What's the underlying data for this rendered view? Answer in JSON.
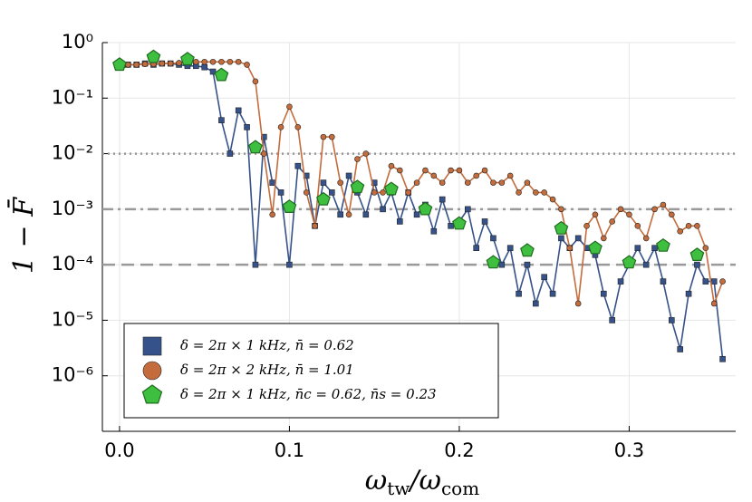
{
  "chart_data": {
    "type": "line",
    "log_y": true,
    "grid": true,
    "legend": "bottom-left",
    "xlabel": [
      "ω",
      "tw",
      "/ω",
      "com"
    ],
    "ylabel": "1 − F̄",
    "xlim": [
      -0.0101,
      0.3627
    ],
    "xticks": [
      {
        "value": 0,
        "label": "0.0"
      },
      0.1,
      0.2,
      0.3
    ],
    "ylim": [
      1e-07,
      1
    ],
    "yticks": [
      {
        "value": 1e-06,
        "label": "10⁻⁶"
      },
      {
        "value": 1e-05,
        "label": "10⁻⁵"
      },
      {
        "value": 0.0001,
        "label": "10⁻⁴"
      },
      {
        "value": 0.001,
        "label": "10⁻³"
      },
      {
        "value": 0.01,
        "label": "10⁻²"
      },
      {
        "value": 0.1,
        "label": "10⁻¹"
      },
      {
        "value": 1,
        "label": "10⁰"
      }
    ],
    "hlines": [
      {
        "value": 0.01,
        "style": "dotted"
      },
      {
        "value": 0.001,
        "style": "dashdot"
      },
      {
        "value": 0.0001,
        "style": "dashed"
      }
    ],
    "series": [
      {
        "name": "δ = 2π × 1 kHz,  n̄ = 0.62",
        "color": "#36528a",
        "marker": "square",
        "x": [
          0,
          0.005,
          0.01,
          0.015,
          0.02,
          0.025,
          0.03,
          0.035,
          0.04,
          0.045,
          0.05,
          0.055,
          0.06,
          0.065,
          0.07,
          0.075,
          0.08,
          0.085,
          0.09,
          0.095,
          0.1,
          0.105,
          0.11,
          0.115,
          0.12,
          0.125,
          0.13,
          0.135,
          0.14,
          0.145,
          0.15,
          0.155,
          0.16,
          0.165,
          0.17,
          0.175,
          0.18,
          0.185,
          0.19,
          0.195,
          0.2,
          0.205,
          0.21,
          0.215,
          0.22,
          0.225,
          0.23,
          0.235,
          0.24,
          0.245,
          0.25,
          0.255,
          0.26,
          0.265,
          0.27,
          0.275,
          0.28,
          0.285,
          0.29,
          0.295,
          0.3,
          0.305,
          0.31,
          0.315,
          0.32,
          0.325,
          0.33,
          0.335,
          0.34,
          0.345,
          0.35,
          0.355
        ],
        "values": [
          0.4,
          0.4,
          0.4,
          0.42,
          0.4,
          0.42,
          0.42,
          0.4,
          0.38,
          0.38,
          0.36,
          0.3,
          0.04,
          0.01,
          0.06,
          0.03,
          0.0001,
          0.02,
          0.003,
          0.002,
          0.0001,
          0.006,
          0.004,
          0.0005,
          0.003,
          0.002,
          0.0008,
          0.004,
          0.002,
          0.0008,
          0.003,
          0.001,
          0.002,
          0.0006,
          0.002,
          0.0008,
          0.0012,
          0.0004,
          0.0015,
          0.0005,
          0.0006,
          0.001,
          0.0002,
          0.0006,
          0.0003,
          0.0001,
          0.0002,
          3e-05,
          0.0001,
          2e-05,
          6e-05,
          3e-05,
          0.0003,
          0.0002,
          0.0003,
          0.0002,
          0.00015,
          3e-05,
          1e-05,
          5e-05,
          0.0001,
          0.0002,
          0.0001,
          0.0002,
          5e-05,
          1e-05,
          3e-06,
          3e-05,
          0.0001,
          5e-05,
          5e-05,
          2e-06
        ]
      },
      {
        "name": "δ = 2π × 2 kHz,  n̄ = 1.01",
        "color": "#c46c3c",
        "marker": "circle",
        "x": [
          0,
          0.005,
          0.01,
          0.015,
          0.02,
          0.025,
          0.03,
          0.035,
          0.04,
          0.045,
          0.05,
          0.055,
          0.06,
          0.065,
          0.07,
          0.075,
          0.08,
          0.085,
          0.09,
          0.095,
          0.1,
          0.105,
          0.11,
          0.115,
          0.12,
          0.125,
          0.13,
          0.135,
          0.14,
          0.145,
          0.15,
          0.155,
          0.16,
          0.165,
          0.17,
          0.175,
          0.18,
          0.185,
          0.19,
          0.195,
          0.2,
          0.205,
          0.21,
          0.215,
          0.22,
          0.225,
          0.23,
          0.235,
          0.24,
          0.245,
          0.25,
          0.255,
          0.26,
          0.265,
          0.27,
          0.275,
          0.28,
          0.285,
          0.29,
          0.295,
          0.3,
          0.305,
          0.31,
          0.315,
          0.32,
          0.325,
          0.33,
          0.335,
          0.34,
          0.345,
          0.35,
          0.355
        ],
        "values": [
          0.4,
          0.4,
          0.4,
          0.41,
          0.41,
          0.42,
          0.42,
          0.43,
          0.44,
          0.45,
          0.45,
          0.45,
          0.45,
          0.45,
          0.45,
          0.4,
          0.2,
          0.01,
          0.0008,
          0.03,
          0.07,
          0.03,
          0.002,
          0.0005,
          0.02,
          0.02,
          0.003,
          0.0008,
          0.008,
          0.01,
          0.002,
          0.002,
          0.006,
          0.005,
          0.002,
          0.003,
          0.005,
          0.004,
          0.003,
          0.005,
          0.005,
          0.003,
          0.004,
          0.005,
          0.003,
          0.003,
          0.004,
          0.002,
          0.003,
          0.002,
          0.002,
          0.0015,
          0.001,
          0.0002,
          2e-05,
          0.0005,
          0.0008,
          0.0003,
          0.0006,
          0.001,
          0.0008,
          0.0005,
          0.0003,
          0.001,
          0.0012,
          0.0008,
          0.0004,
          0.0005,
          0.0005,
          0.0002,
          2e-05,
          5e-05
        ]
      },
      {
        "name": "δ = 2π × 1 kHz,  n̄c = 0.62,  n̄s = 0.23",
        "color": "#3fbf3f",
        "marker": "pentagon",
        "line": false,
        "x": [
          0,
          0.02,
          0.04,
          0.06,
          0.08,
          0.1,
          0.12,
          0.14,
          0.16,
          0.18,
          0.2,
          0.22,
          0.24,
          0.26,
          0.28,
          0.3,
          0.32,
          0.34
        ],
        "values": [
          0.4,
          0.55,
          0.5,
          0.26,
          0.013,
          0.0011,
          0.0015,
          0.0025,
          0.0023,
          0.001,
          0.00055,
          0.00011,
          0.00018,
          0.00045,
          0.0002,
          0.00011,
          0.00022,
          0.00015
        ]
      }
    ]
  }
}
